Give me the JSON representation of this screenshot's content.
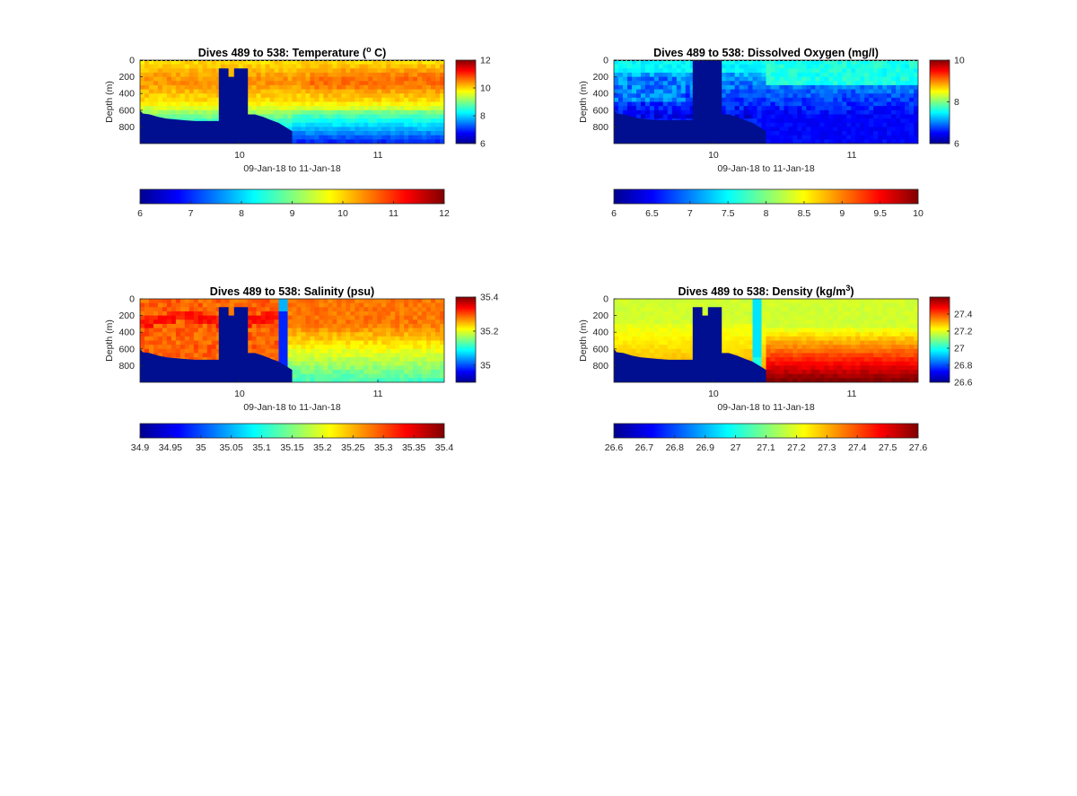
{
  "colors": {
    "jet": [
      "#00008f",
      "#0000ff",
      "#0080ff",
      "#00ffff",
      "#80ff80",
      "#ffff00",
      "#ff8000",
      "#ff0000",
      "#800000"
    ],
    "masked": "#000f8f"
  },
  "chart_data": [
    {
      "type": "heatmap",
      "title": "Dives 489 to 538: Temperature (",
      "title_super": "o",
      "title_tail": " C)",
      "xlabel": "09-Jan-18 to 11-Jan-18",
      "ylabel": "Depth (m)",
      "x_ticks": [
        "10",
        "11"
      ],
      "x_tick_days": [
        10,
        11
      ],
      "xlim_days": [
        9.28,
        11.48
      ],
      "ylim": [
        0,
        1000
      ],
      "y_ticks": [
        0,
        200,
        400,
        600,
        800
      ],
      "y_reversed": true,
      "colorbar_ticks": [
        "6",
        "8",
        "10",
        "12"
      ],
      "color_range": [
        6,
        12
      ],
      "hcolorbar_ticks": [
        "6",
        "7",
        "8",
        "9",
        "10",
        "11",
        "12"
      ],
      "surface_line": true,
      "profile_dates": [
        9.28,
        9.8,
        9.86,
        9.91,
        10.07,
        10.38,
        11.48
      ],
      "masked_polygon_days": [
        [
          9.28,
          600
        ],
        [
          9.3,
          640
        ],
        [
          9.35,
          650
        ],
        [
          9.41,
          680
        ],
        [
          9.47,
          700
        ],
        [
          9.53,
          710
        ],
        [
          9.6,
          720
        ],
        [
          9.68,
          730
        ],
        [
          9.85,
          730
        ],
        [
          9.85,
          100
        ],
        [
          9.92,
          100
        ],
        [
          9.92,
          200
        ],
        [
          9.96,
          200
        ],
        [
          9.96,
          100
        ],
        [
          10.06,
          100
        ],
        [
          10.06,
          650
        ],
        [
          10.11,
          650
        ],
        [
          10.17,
          680
        ],
        [
          10.23,
          720
        ],
        [
          10.28,
          750
        ],
        [
          10.33,
          800
        ],
        [
          10.38,
          850
        ],
        [
          10.38,
          1000
        ],
        [
          9.28,
          1000
        ]
      ],
      "field_description": {
        "deep_value": 8.0,
        "surface_value": 10.0,
        "warm_core_value": 10.5,
        "thermocline_depth": 600
      }
    },
    {
      "type": "heatmap",
      "title": "Dives 489 to 538: Dissolved Oxygen (mg/l)",
      "xlabel": "09-Jan-18 to 11-Jan-18",
      "ylabel": "Depth (m)",
      "x_ticks": [
        "10",
        "11"
      ],
      "x_tick_days": [
        10,
        11
      ],
      "xlim_days": [
        9.28,
        11.48
      ],
      "ylim": [
        0,
        1000
      ],
      "y_ticks": [
        0,
        200,
        400,
        600,
        800
      ],
      "y_reversed": true,
      "colorbar_ticks": [
        "6",
        "8",
        "10"
      ],
      "color_range": [
        6,
        10
      ],
      "hcolorbar_ticks": [
        "6",
        "6.5",
        "7",
        "7.5",
        "8",
        "8.5",
        "9",
        "9.5",
        "10"
      ],
      "surface_line": true,
      "masked_polygon_days": [
        [
          9.28,
          600
        ],
        [
          9.3,
          640
        ],
        [
          9.35,
          650
        ],
        [
          9.41,
          680
        ],
        [
          9.47,
          700
        ],
        [
          9.53,
          710
        ],
        [
          9.6,
          720
        ],
        [
          9.68,
          720
        ],
        [
          9.85,
          720
        ],
        [
          9.85,
          0
        ],
        [
          10.06,
          0
        ],
        [
          10.06,
          650
        ],
        [
          10.11,
          650
        ],
        [
          10.17,
          680
        ],
        [
          10.23,
          720
        ],
        [
          10.28,
          750
        ],
        [
          10.33,
          800
        ],
        [
          10.38,
          850
        ],
        [
          10.38,
          1000
        ],
        [
          9.28,
          1000
        ]
      ],
      "field_description": {
        "surface_value": 7.7,
        "deep_value": 6.6,
        "oxygen_minimum_depth": 600
      }
    },
    {
      "type": "heatmap",
      "title": "Dives 489 to 538: Salinity (psu)",
      "xlabel": "09-Jan-18 to 11-Jan-18",
      "ylabel": "Depth (m)",
      "x_ticks": [
        "10",
        "11"
      ],
      "x_tick_days": [
        10,
        11
      ],
      "xlim_days": [
        9.28,
        11.48
      ],
      "ylim": [
        0,
        1000
      ],
      "y_ticks": [
        0,
        200,
        400,
        600,
        800
      ],
      "y_reversed": true,
      "colorbar_ticks": [
        "35",
        "35.2",
        "35.4"
      ],
      "color_range": [
        34.9,
        35.4
      ],
      "hcolorbar_ticks": [
        "34.9",
        "34.95",
        "35",
        "35.05",
        "35.1",
        "35.15",
        "35.2",
        "35.25",
        "35.3",
        "35.35",
        "35.4"
      ],
      "surface_line": false,
      "masked_polygon_days": [
        [
          9.28,
          600
        ],
        [
          9.3,
          640
        ],
        [
          9.35,
          650
        ],
        [
          9.41,
          680
        ],
        [
          9.47,
          700
        ],
        [
          9.53,
          710
        ],
        [
          9.6,
          720
        ],
        [
          9.68,
          730
        ],
        [
          9.85,
          730
        ],
        [
          9.85,
          100
        ],
        [
          9.92,
          100
        ],
        [
          9.92,
          200
        ],
        [
          9.96,
          200
        ],
        [
          9.96,
          100
        ],
        [
          10.06,
          100
        ],
        [
          10.06,
          650
        ],
        [
          10.11,
          650
        ],
        [
          10.17,
          680
        ],
        [
          10.23,
          720
        ],
        [
          10.28,
          750
        ],
        [
          10.33,
          800
        ],
        [
          10.38,
          850
        ],
        [
          10.38,
          1000
        ],
        [
          9.28,
          1000
        ]
      ],
      "anomaly_column_days": [
        10.29,
        10.35
      ],
      "field_description": {
        "surface_value": 35.3,
        "deep_value": 35.15,
        "high_core_value": 35.35
      }
    },
    {
      "type": "heatmap",
      "title": "Dives 489 to 538: Density (kg/m",
      "title_super": "3",
      "title_tail": ")",
      "xlabel": "09-Jan-18 to 11-Jan-18",
      "ylabel": "Depth (m)",
      "x_ticks": [
        "10",
        "11"
      ],
      "x_tick_days": [
        10,
        11
      ],
      "xlim_days": [
        9.28,
        11.48
      ],
      "ylim": [
        0,
        1000
      ],
      "y_ticks": [
        0,
        200,
        400,
        600,
        800
      ],
      "y_reversed": true,
      "colorbar_ticks": [
        "26.6",
        "26.8",
        "27",
        "27.2",
        "27.4"
      ],
      "color_range": [
        26.6,
        27.6
      ],
      "hcolorbar_ticks": [
        "26.6",
        "26.7",
        "26.8",
        "26.9",
        "27",
        "27.1",
        "27.2",
        "27.3",
        "27.4",
        "27.5",
        "27.6"
      ],
      "surface_line": false,
      "masked_polygon_days": [
        [
          9.28,
          600
        ],
        [
          9.3,
          640
        ],
        [
          9.35,
          650
        ],
        [
          9.41,
          680
        ],
        [
          9.47,
          700
        ],
        [
          9.53,
          710
        ],
        [
          9.6,
          720
        ],
        [
          9.68,
          730
        ],
        [
          9.85,
          730
        ],
        [
          9.85,
          100
        ],
        [
          9.92,
          100
        ],
        [
          9.92,
          200
        ],
        [
          9.96,
          200
        ],
        [
          9.96,
          100
        ],
        [
          10.06,
          100
        ],
        [
          10.06,
          650
        ],
        [
          10.11,
          650
        ],
        [
          10.17,
          680
        ],
        [
          10.23,
          720
        ],
        [
          10.28,
          750
        ],
        [
          10.33,
          800
        ],
        [
          10.38,
          850
        ],
        [
          10.38,
          1000
        ],
        [
          9.28,
          1000
        ]
      ],
      "anomaly_column_days": [
        10.28,
        10.35
      ],
      "field_description": {
        "surface_value": 27.15,
        "deep_value": 27.5,
        "pycnocline_depth": 500
      }
    }
  ]
}
